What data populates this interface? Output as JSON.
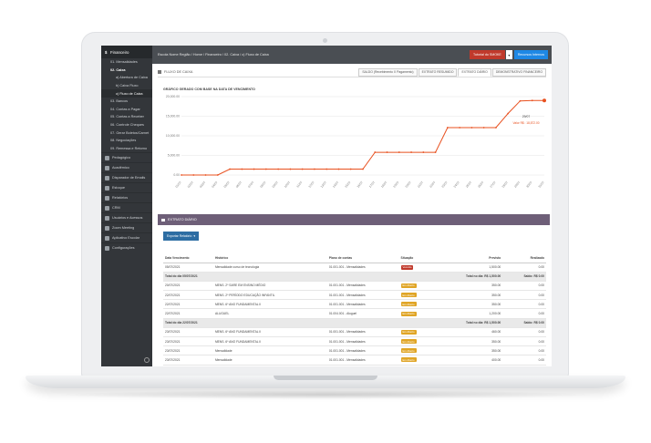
{
  "sidebar": {
    "header": "Financeiro",
    "items": [
      {
        "label": "01. Mensalidades",
        "level": "main"
      },
      {
        "label": "02. Caixa",
        "level": "main",
        "active": true
      },
      {
        "label": "a) Abertura de Caixa",
        "level": "sub"
      },
      {
        "label": "b) Caixa Fluxo",
        "level": "sub"
      },
      {
        "label": "c) Fluxo de Caixa",
        "level": "sub",
        "selected": true
      },
      {
        "label": "03. Bancos",
        "level": "main"
      },
      {
        "label": "04. Contas a Pagar",
        "level": "main"
      },
      {
        "label": "05. Contas a Receber",
        "level": "main"
      },
      {
        "label": "06. Controle Cheques",
        "level": "main"
      },
      {
        "label": "07. Gerar Boletos/Carnet",
        "level": "main"
      },
      {
        "label": "08. Negociações",
        "level": "main"
      },
      {
        "label": "09. Remessa e Retorno",
        "level": "main"
      }
    ],
    "modules": [
      "Pedagógico",
      "Acadêmico",
      "Disparador de Emails",
      "Estoque",
      "Relatórios",
      "CRM",
      "Usuários e Acessos",
      "Zoom Meeting",
      "Aplicativo Escolar",
      "Configurações"
    ]
  },
  "topbar": {
    "breadcrumb": "Escola Nome Região  /  Home  /  Financeiro  /  02. Caixa  /  c) Fluxo de Caixa",
    "tutorial_label": "Tutorial do SMOKE",
    "resources_label": "Recursos Internos"
  },
  "page": {
    "title": "FLUXO DE CAIXA",
    "tabs": [
      "SALDO (Recebimento X Pagamento)",
      "EXTRATO RESUMIDO",
      "EXTRATO DIÁRIO",
      "DEMONSTRATIVO FINANCEIRO"
    ],
    "active_tab": "EXTRATO DIÁRIO"
  },
  "chart_data": {
    "type": "line",
    "title": "GRÁFICO GERADO COM BASE NA DATA DE VENCIMENTO",
    "ylim": [
      0,
      20000
    ],
    "yticks": [
      "20,000.00",
      "15,000.00",
      "10,000.00",
      "5,000.00",
      "0.00"
    ],
    "x": [
      "01/07",
      "02/07",
      "03/07",
      "04/07",
      "05/07",
      "06/07",
      "07/07",
      "08/07",
      "09/07",
      "10/07",
      "11/07",
      "12/07",
      "13/07",
      "14/07",
      "15/07",
      "16/07",
      "17/07",
      "18/07",
      "19/07",
      "20/07",
      "21/07",
      "22/07",
      "23/07",
      "24/07",
      "25/07",
      "26/07",
      "27/07",
      "28/07",
      "29/07",
      "30/07",
      "31/07"
    ],
    "values": [
      0,
      0,
      0,
      0,
      1500,
      1500,
      1500,
      1500,
      1500,
      1500,
      1500,
      1500,
      1500,
      1500,
      1500,
      1500,
      5800,
      5800,
      5800,
      5800,
      5800,
      5800,
      12100,
      12100,
      12100,
      12100,
      12100,
      15700,
      18900,
      19000,
      19000
    ],
    "color": "#e8501f",
    "tooltip_title": "29/07",
    "tooltip_value": "Valor R$ : 18,872.00",
    "grid": true
  },
  "extrato": {
    "section_title": "EXTRATO DIÁRIO",
    "export_label": "Exportar Relatório",
    "columns": [
      "Data Vencimento",
      "Histórico",
      "Plano de contas",
      "Situação",
      "Previsto",
      "Realizado"
    ],
    "rows": [
      {
        "type": "row",
        "date": "05/07/2021",
        "hist": "Mensalidade curso de tecnologia",
        "plano": "01.001.001 - Mensalidades",
        "sit": "Vencido",
        "sit_type": "venc",
        "prev": "1,500.00",
        "real": "0.00"
      },
      {
        "type": "total",
        "label": "Total do dia 05/07/2021",
        "prev": "Total no dia: R$ 1,500.00",
        "real": "Saldo: R$ 0.00"
      },
      {
        "type": "row",
        "date": "20/07/2021",
        "hist": "MENS. 2º SARE EM ENSINO MÉDIO",
        "plano": "01.001.001 - Mensalidades",
        "sit": "Em Aberto",
        "sit_type": "aber",
        "prev": "350.00",
        "real": "0.00"
      },
      {
        "type": "row",
        "date": "22/07/2021",
        "hist": "MENS. 2º PERÍODO EDUCAÇÃO INFANTIL",
        "plano": "01.001.001 - Mensalidades",
        "sit": "Em Aberto",
        "sit_type": "aber",
        "prev": "350.00",
        "real": "0.00"
      },
      {
        "type": "row",
        "date": "22/07/2021",
        "hist": "MENS. 6º ANO FUNDAMENTAL II",
        "plano": "01.001.001 - Mensalidades",
        "sit": "Em Aberto",
        "sit_type": "aber",
        "prev": "350.00",
        "real": "0.00"
      },
      {
        "type": "row",
        "date": "22/07/2021",
        "hist": "ALUGUEL",
        "plano": "01.004.001 - Aluguel",
        "sit": "Em Aberto",
        "sit_type": "aber",
        "prev": "1,200.00",
        "real": "0.00"
      },
      {
        "type": "total",
        "label": "Total do dia 22/07/2021",
        "prev": "Total no dia: R$ 1,500.00",
        "real": "Saldo: R$ 0.00"
      },
      {
        "type": "row",
        "date": "23/07/2021",
        "hist": "MENS. 6º ANO FUNDAMENTAL II",
        "plano": "01.001.001 - Mensalidades",
        "sit": "Em Aberto",
        "sit_type": "aber",
        "prev": "460.00",
        "real": "0.00"
      },
      {
        "type": "row",
        "date": "23/07/2021",
        "hist": "MENS. 6º ANO FUNDAMENTAL II",
        "plano": "01.001.001 - Mensalidades",
        "sit": "Em Aberto",
        "sit_type": "aber",
        "prev": "350.00",
        "real": "0.00"
      },
      {
        "type": "row",
        "date": "23/07/2021",
        "hist": "Mensalidade",
        "plano": "01.001.001 - Mensalidades",
        "sit": "Em Aberto",
        "sit_type": "aber",
        "prev": "350.00",
        "real": "0.00"
      },
      {
        "type": "row",
        "date": "23/07/2021",
        "hist": "Mensalidade",
        "plano": "01.001.001 - Mensalidades",
        "sit": "Em Aberto",
        "sit_type": "aber",
        "prev": "400.00",
        "real": "0.00"
      }
    ]
  }
}
